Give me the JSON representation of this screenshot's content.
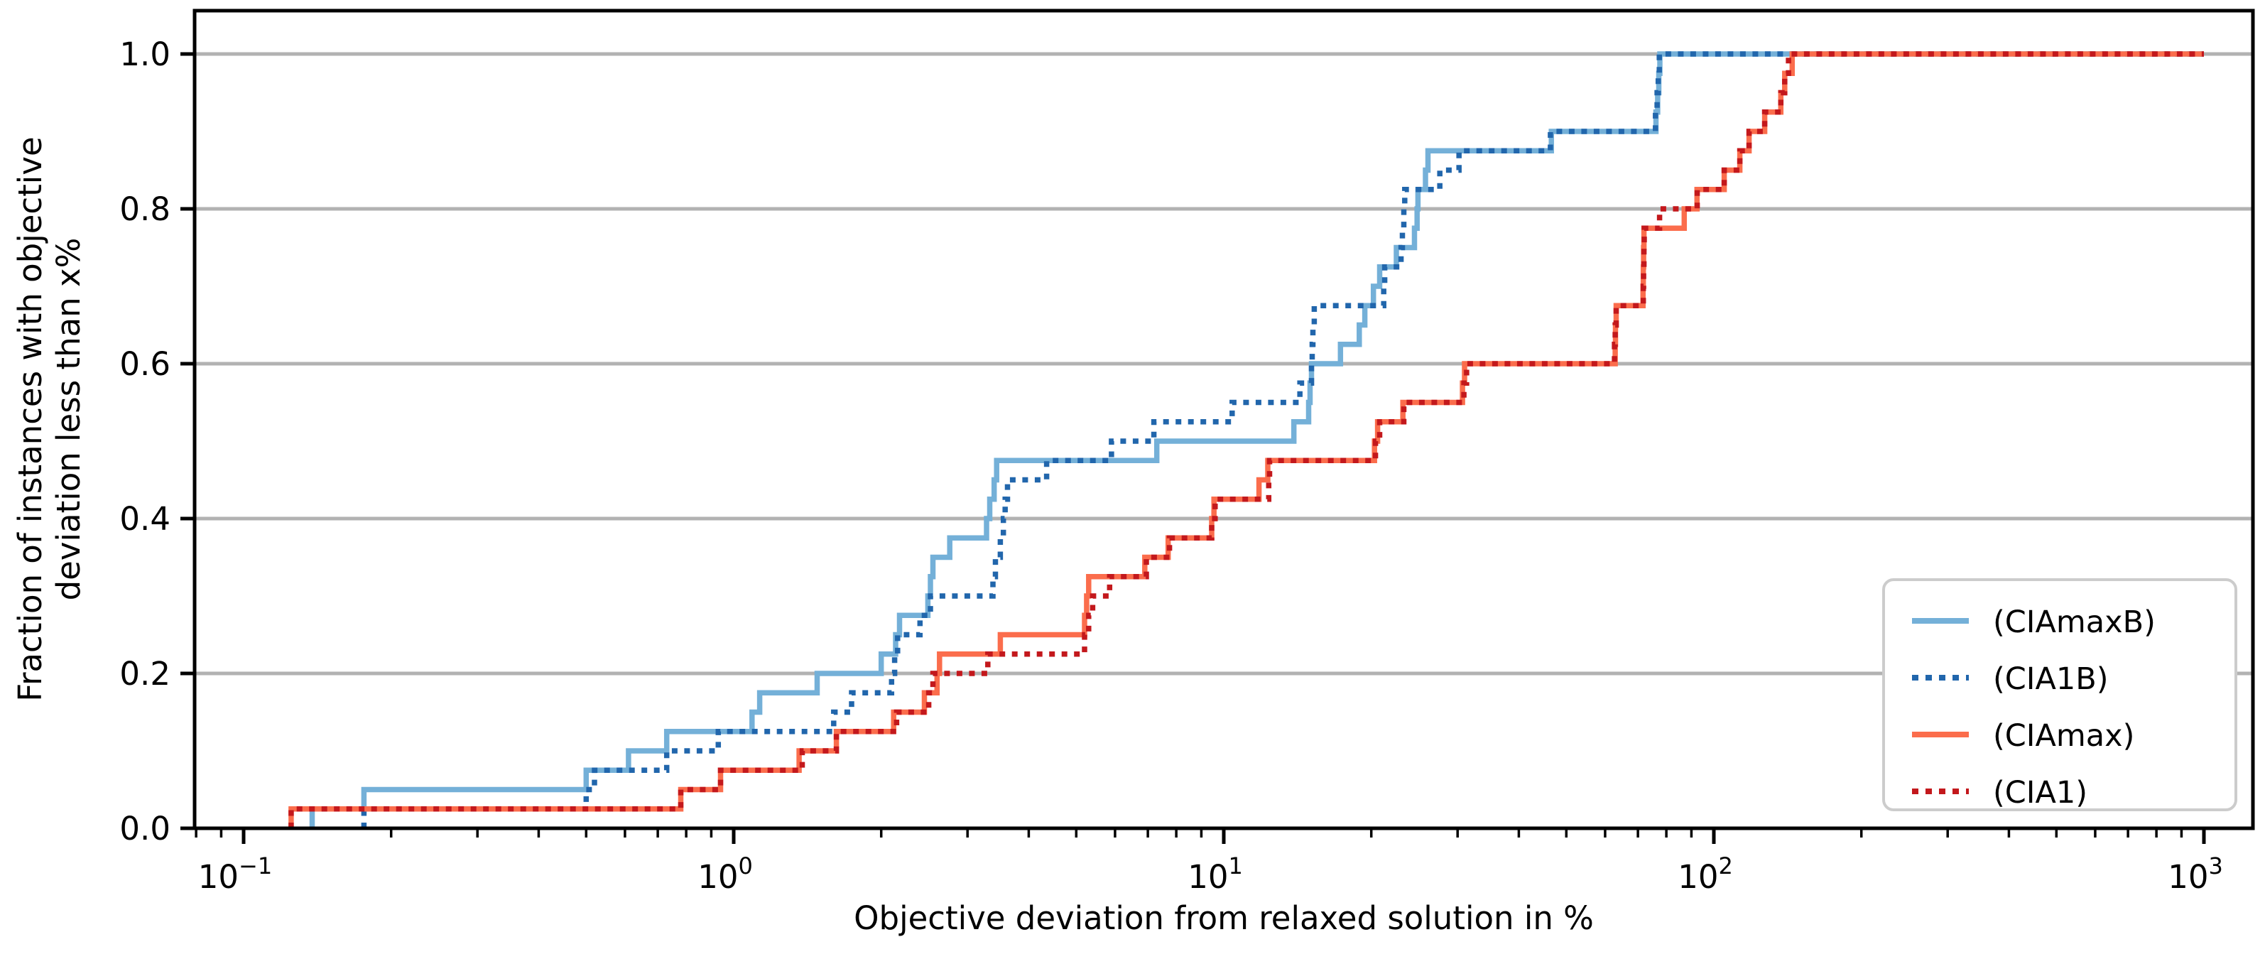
{
  "figure": {
    "xlabel": "Objective deviation from relaxed solution in %",
    "ylabel_line1": "Fraction of instances with objective",
    "ylabel_line2": "deviation less than x%"
  },
  "axes": {
    "x_ticks": [
      {
        "base": "10",
        "exp": "−1",
        "v": 0.1
      },
      {
        "base": "10",
        "exp": "0",
        "v": 1
      },
      {
        "base": "10",
        "exp": "1",
        "v": 10
      },
      {
        "base": "10",
        "exp": "2",
        "v": 100
      },
      {
        "base": "10",
        "exp": "3",
        "v": 1000
      }
    ],
    "y_ticks": [
      {
        "label": "0.0",
        "v": 0.0
      },
      {
        "label": "0.2",
        "v": 0.2
      },
      {
        "label": "0.4",
        "v": 0.4
      },
      {
        "label": "0.6",
        "v": 0.6
      },
      {
        "label": "0.8",
        "v": 0.8
      },
      {
        "label": "1.0",
        "v": 1.0
      }
    ],
    "grid_color": "#b2b2b2",
    "spine_color": "#000000"
  },
  "legend": {
    "items": [
      {
        "label": "(CIAmaxB)",
        "color": "#74b0d8",
        "dotted": false
      },
      {
        "label": "(CIA1B)",
        "color": "#2166ac",
        "dotted": true
      },
      {
        "label": "(CIAmax)",
        "color": "#fb6d4c",
        "dotted": false
      },
      {
        "label": "(CIA1)",
        "color": "#c3181c",
        "dotted": true
      }
    ]
  },
  "chart_data": {
    "type": "line",
    "variant": "step-ecdf",
    "xscale": "log",
    "xlim_log": [
      -1.1,
      3.1
    ],
    "ylim": [
      0,
      1.056
    ],
    "x_end": 1000,
    "grid": "horizontal-only",
    "legend_position": "lower right",
    "xlabel": "Objective deviation from relaxed solution in %",
    "ylabel": "Fraction of instances with objective deviation less than x%",
    "series": [
      {
        "name": "(CIAmaxB)",
        "color": "#74b0d8",
        "dotted": false,
        "steps": [
          [
            0.138,
            0.025
          ],
          [
            0.176,
            0.05
          ],
          [
            0.5,
            0.075
          ],
          [
            0.61,
            0.1
          ],
          [
            0.73,
            0.125
          ],
          [
            1.09,
            0.15
          ],
          [
            1.13,
            0.175
          ],
          [
            1.48,
            0.2
          ],
          [
            2.0,
            0.225
          ],
          [
            2.14,
            0.25
          ],
          [
            2.18,
            0.275
          ],
          [
            2.49,
            0.3
          ],
          [
            2.52,
            0.325
          ],
          [
            2.55,
            0.35
          ],
          [
            2.76,
            0.375
          ],
          [
            3.28,
            0.4
          ],
          [
            3.33,
            0.425
          ],
          [
            3.4,
            0.45
          ],
          [
            3.44,
            0.475
          ],
          [
            7.3,
            0.5
          ],
          [
            13.9,
            0.525
          ],
          [
            14.9,
            0.55
          ],
          [
            15.0,
            0.575
          ],
          [
            15.1,
            0.6
          ],
          [
            17.3,
            0.625
          ],
          [
            18.9,
            0.65
          ],
          [
            19.4,
            0.675
          ],
          [
            20.2,
            0.7
          ],
          [
            20.8,
            0.725
          ],
          [
            22.5,
            0.75
          ],
          [
            24.5,
            0.775
          ],
          [
            24.8,
            0.8
          ],
          [
            24.9,
            0.825
          ],
          [
            25.8,
            0.85
          ],
          [
            26.1,
            0.875
          ],
          [
            46.6,
            0.9
          ],
          [
            76.2,
            0.925
          ],
          [
            76.8,
            0.95
          ],
          [
            77.2,
            0.975
          ],
          [
            77.6,
            1.0
          ]
        ]
      },
      {
        "name": "(CIA1B)",
        "color": "#2166ac",
        "dotted": true,
        "steps": [
          [
            0.176,
            0.025
          ],
          [
            0.5,
            0.05
          ],
          [
            0.52,
            0.075
          ],
          [
            0.73,
            0.1
          ],
          [
            0.93,
            0.125
          ],
          [
            1.6,
            0.15
          ],
          [
            1.74,
            0.175
          ],
          [
            2.1,
            0.2
          ],
          [
            2.13,
            0.225
          ],
          [
            2.16,
            0.25
          ],
          [
            2.4,
            0.275
          ],
          [
            2.52,
            0.3
          ],
          [
            3.38,
            0.325
          ],
          [
            3.42,
            0.35
          ],
          [
            3.5,
            0.375
          ],
          [
            3.55,
            0.4
          ],
          [
            3.58,
            0.425
          ],
          [
            3.62,
            0.45
          ],
          [
            4.35,
            0.475
          ],
          [
            5.9,
            0.5
          ],
          [
            7.2,
            0.525
          ],
          [
            10.4,
            0.55
          ],
          [
            14.3,
            0.575
          ],
          [
            15.1,
            0.6
          ],
          [
            15.15,
            0.625
          ],
          [
            15.2,
            0.65
          ],
          [
            15.3,
            0.675
          ],
          [
            21.2,
            0.7
          ],
          [
            21.3,
            0.725
          ],
          [
            23.0,
            0.75
          ],
          [
            23.15,
            0.775
          ],
          [
            23.3,
            0.8
          ],
          [
            23.4,
            0.825
          ],
          [
            27.6,
            0.85
          ],
          [
            30.2,
            0.875
          ],
          [
            46.4,
            0.9
          ],
          [
            76.0,
            0.925
          ],
          [
            76.6,
            0.95
          ],
          [
            77.0,
            0.975
          ],
          [
            77.4,
            1.0
          ]
        ]
      },
      {
        "name": "(CIAmax)",
        "color": "#fb6d4c",
        "dotted": false,
        "steps": [
          [
            0.125,
            0.025
          ],
          [
            0.78,
            0.05
          ],
          [
            0.94,
            0.075
          ],
          [
            1.36,
            0.1
          ],
          [
            1.62,
            0.125
          ],
          [
            2.12,
            0.15
          ],
          [
            2.45,
            0.175
          ],
          [
            2.6,
            0.2
          ],
          [
            2.63,
            0.225
          ],
          [
            3.5,
            0.25
          ],
          [
            5.2,
            0.275
          ],
          [
            5.25,
            0.3
          ],
          [
            5.3,
            0.325
          ],
          [
            6.9,
            0.35
          ],
          [
            7.7,
            0.375
          ],
          [
            9.45,
            0.4
          ],
          [
            9.55,
            0.425
          ],
          [
            11.8,
            0.45
          ],
          [
            12.3,
            0.475
          ],
          [
            20.3,
            0.5
          ],
          [
            20.6,
            0.525
          ],
          [
            23.2,
            0.55
          ],
          [
            30.7,
            0.575
          ],
          [
            31.0,
            0.6
          ],
          [
            62.9,
            0.625
          ],
          [
            63.0,
            0.65
          ],
          [
            63.2,
            0.675
          ],
          [
            71.7,
            0.7
          ],
          [
            71.8,
            0.725
          ],
          [
            71.9,
            0.75
          ],
          [
            72.0,
            0.775
          ],
          [
            87.0,
            0.8
          ],
          [
            92.4,
            0.825
          ],
          [
            105,
            0.85
          ],
          [
            113,
            0.875
          ],
          [
            118,
            0.9
          ],
          [
            127,
            0.925
          ],
          [
            137,
            0.95
          ],
          [
            139.5,
            0.975
          ],
          [
            144.5,
            1.0
          ]
        ]
      },
      {
        "name": "(CIA1)",
        "color": "#c3181c",
        "dotted": true,
        "steps": [
          [
            0.125,
            0.025
          ],
          [
            0.78,
            0.05
          ],
          [
            0.94,
            0.075
          ],
          [
            1.38,
            0.1
          ],
          [
            1.62,
            0.125
          ],
          [
            2.15,
            0.15
          ],
          [
            2.5,
            0.175
          ],
          [
            2.55,
            0.2
          ],
          [
            3.3,
            0.225
          ],
          [
            5.2,
            0.25
          ],
          [
            5.3,
            0.275
          ],
          [
            5.4,
            0.3
          ],
          [
            5.85,
            0.325
          ],
          [
            6.95,
            0.35
          ],
          [
            7.75,
            0.375
          ],
          [
            9.45,
            0.4
          ],
          [
            9.6,
            0.425
          ],
          [
            12.35,
            0.45
          ],
          [
            12.4,
            0.475
          ],
          [
            20.4,
            0.5
          ],
          [
            20.8,
            0.525
          ],
          [
            23.3,
            0.55
          ],
          [
            30.9,
            0.575
          ],
          [
            31.3,
            0.6
          ],
          [
            62.7,
            0.625
          ],
          [
            62.9,
            0.65
          ],
          [
            63.2,
            0.675
          ],
          [
            71.8,
            0.7
          ],
          [
            71.9,
            0.725
          ],
          [
            72.0,
            0.75
          ],
          [
            72.1,
            0.775
          ],
          [
            77.5,
            0.8
          ],
          [
            92.5,
            0.825
          ],
          [
            105,
            0.85
          ],
          [
            113,
            0.875
          ],
          [
            118,
            0.9
          ],
          [
            127,
            0.925
          ],
          [
            137,
            0.95
          ],
          [
            139.5,
            0.975
          ],
          [
            142,
            1.0
          ]
        ]
      }
    ]
  }
}
